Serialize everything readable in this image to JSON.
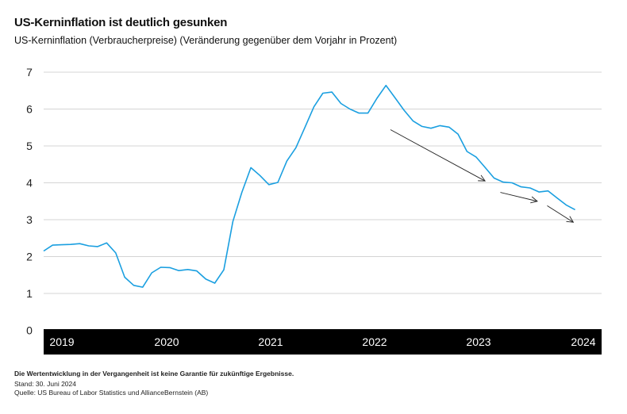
{
  "title": "US-Kerninflation ist deutlich gesunken",
  "subtitle": "US-Kerninflation (Verbraucherpreise) (Veränderung gegenüber dem Vorjahr in Prozent)",
  "footer": {
    "disclaimer": "Die Wertentwicklung in der Vergangenheit ist keine Garantie für zukünftige Ergebnisse.",
    "date": "Stand: 30. Juni 2024",
    "source": "Quelle: US Bureau of Labor Statistics und AllianceBernstein (AB)"
  },
  "chart_data": {
    "type": "line",
    "title": "US-Kerninflation ist deutlich gesunken",
    "subtitle": "US-Kerninflation (Verbraucherpreise) (Veränderung gegenüber dem Vorjahr in Prozent)",
    "xlabel": "",
    "ylabel": "",
    "ylim": [
      0,
      7
    ],
    "yticks": [
      "0",
      "1",
      "2",
      "3",
      "4",
      "5",
      "6",
      "7"
    ],
    "xticks": [
      "2019",
      "2020",
      "2021",
      "2022",
      "2023",
      "2024"
    ],
    "grid": true,
    "line_color": "#1a9fe0",
    "axis_band_color": "#000000",
    "x_start": "2019-01",
    "series": [
      {
        "values": [
          2.15,
          2.31,
          2.32,
          2.33,
          2.35,
          2.29,
          2.27,
          2.37,
          2.1,
          1.44,
          1.22,
          1.17,
          1.56,
          1.71,
          1.7,
          1.62,
          1.65,
          1.61,
          1.39,
          1.28,
          1.64,
          2.95,
          3.74,
          4.41,
          4.2,
          3.95,
          4.01,
          4.59,
          4.95,
          5.5,
          6.06,
          6.43,
          6.46,
          6.15,
          6.0,
          5.89,
          5.89,
          6.29,
          6.64,
          6.31,
          5.97,
          5.68,
          5.53,
          5.48,
          5.55,
          5.51,
          5.32,
          4.85,
          4.7,
          4.42,
          4.13,
          4.02,
          4.0,
          3.89,
          3.86,
          3.75,
          3.78,
          3.59,
          3.4,
          3.27
        ]
      }
    ],
    "annotations": [
      {
        "type": "arrow",
        "from": [
          38.5,
          5.44
        ],
        "to": [
          49.0,
          4.05
        ]
      },
      {
        "type": "arrow",
        "from": [
          50.7,
          3.74
        ],
        "to": [
          54.8,
          3.5
        ]
      },
      {
        "type": "arrow",
        "from": [
          55.9,
          3.38
        ],
        "to": [
          58.8,
          2.93
        ]
      }
    ]
  }
}
